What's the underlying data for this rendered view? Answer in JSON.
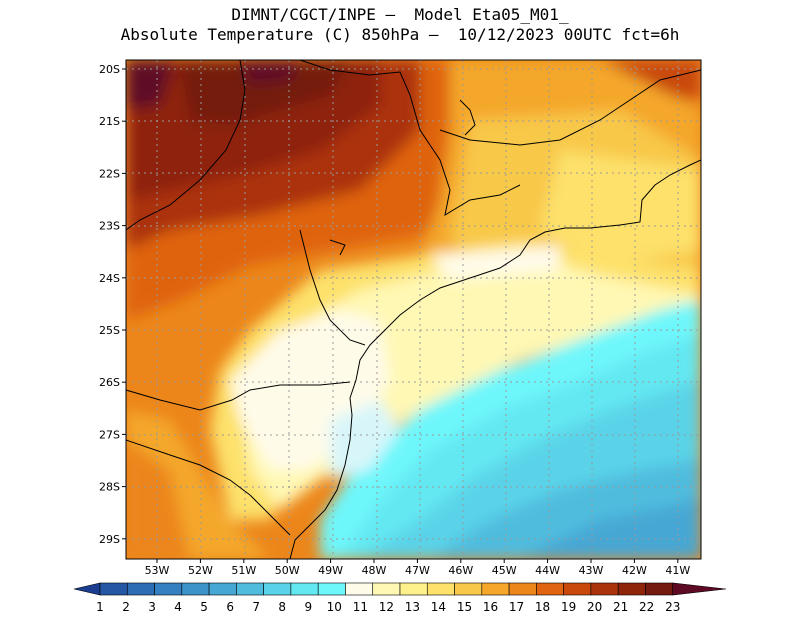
{
  "header": {
    "line1": "DIMNT/CGCT/INPE –  Model Eta05_M01_",
    "line2": "Absolute Temperature (C) 850hPa –  10/12/2023 00UTC fct=6h"
  },
  "map": {
    "lat_labels": [
      "20S",
      "21S",
      "22S",
      "23S",
      "24S",
      "25S",
      "26S",
      "27S",
      "28S",
      "29S"
    ],
    "lon_labels": [
      "53W",
      "52W",
      "51W",
      "50W",
      "49W",
      "48W",
      "47W",
      "46W",
      "45W",
      "44W",
      "43W",
      "42W",
      "41W"
    ],
    "lat_range": [
      -29.4,
      -19.9
    ],
    "lon_range": [
      -53.6,
      -40.6
    ],
    "grid": true
  },
  "colorbar": {
    "labels": [
      "1",
      "2",
      "3",
      "4",
      "5",
      "6",
      "7",
      "8",
      "9",
      "10",
      "11",
      "12",
      "13",
      "14",
      "15",
      "16",
      "17",
      "18",
      "19",
      "20",
      "21",
      "22",
      "23"
    ],
    "colors": [
      "#1a3d8f",
      "#2458a5",
      "#2c6db3",
      "#3580c0",
      "#3c93c9",
      "#46a7d4",
      "#4fbcde",
      "#5ad3e8",
      "#63e8f2",
      "#6ef7fb",
      "#fffbe9",
      "#fff8b4",
      "#fef08a",
      "#fde16a",
      "#f8c84a",
      "#f4a72a",
      "#ec861a",
      "#df6310",
      "#c9490a",
      "#ab3309",
      "#8e240a",
      "#751a0e",
      "#5e0a25"
    ]
  }
}
